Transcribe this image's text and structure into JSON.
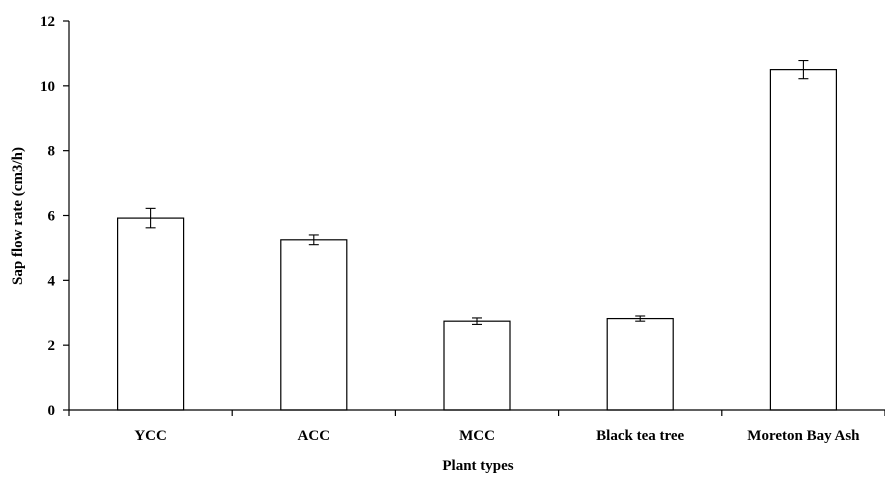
{
  "chart_data": {
    "type": "bar",
    "title": "",
    "xlabel": "Plant types",
    "ylabel": "Sap flow rate (cm3/h)",
    "categories": [
      "YCC",
      "ACC",
      "MCC",
      "Black tea tree",
      "Moreton Bay Ash"
    ],
    "values": [
      5.92,
      5.25,
      2.74,
      2.82,
      10.5
    ],
    "errors": [
      0.3,
      0.15,
      0.1,
      0.08,
      0.28
    ],
    "ylim": [
      0,
      12
    ],
    "yticks": [
      0,
      2,
      4,
      6,
      8,
      10,
      12
    ],
    "grid": false,
    "legend": "none",
    "colors": {
      "bar_fill": "#ffffff",
      "bar_stroke": "#000000",
      "axis": "#000000"
    }
  }
}
